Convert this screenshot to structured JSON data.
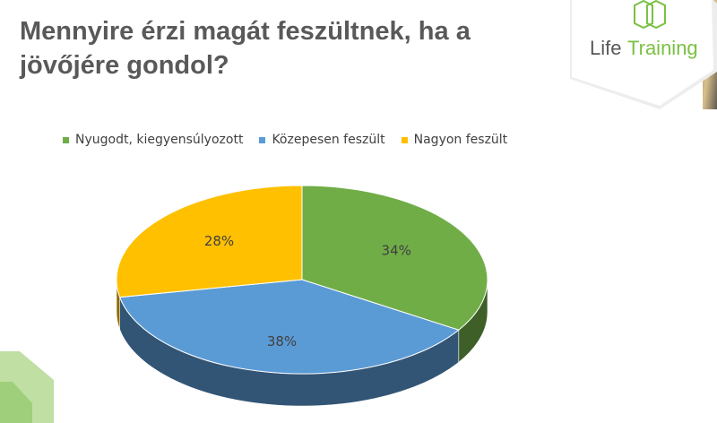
{
  "slide": {
    "title": "Mennyire érzi magát feszültnek, ha a jövőjére gondol?",
    "logo": {
      "name_part1": "Life",
      "name_part2": "Training"
    }
  },
  "colors": {
    "green": "#70AD47",
    "blue": "#5B9BD5",
    "yellow": "#FFC000",
    "title": "#595959",
    "logo_green": "#7AC143"
  },
  "chart_data": {
    "type": "pie",
    "style": "3d",
    "title": "",
    "legend_position": "top",
    "categories": [
      "Nyugodt, kiegyensúlyozott",
      "Közepesen feszült",
      "Nagyon feszült"
    ],
    "values": [
      34,
      38,
      28
    ],
    "labels": [
      "34%",
      "38%",
      "28%"
    ],
    "colors": [
      "#70AD47",
      "#5B9BD5",
      "#FFC000"
    ]
  }
}
